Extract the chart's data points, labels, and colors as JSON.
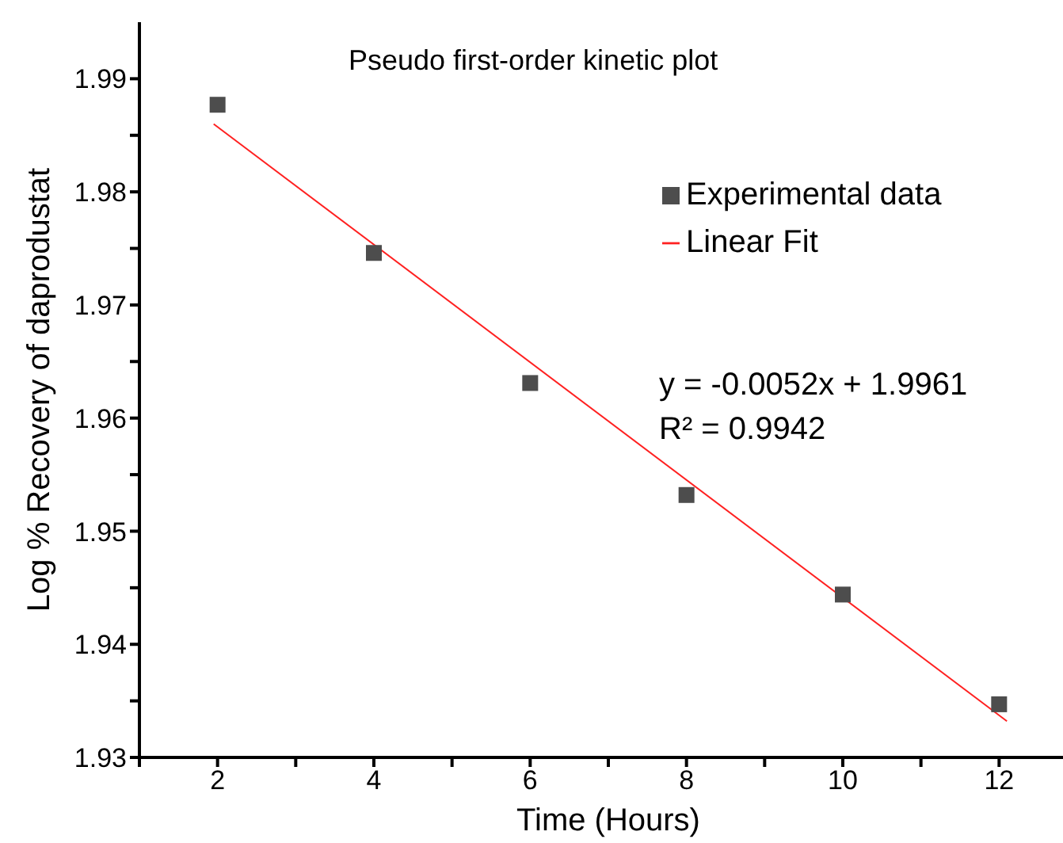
{
  "chart_data": {
    "type": "scatter",
    "title": "Pseudo first-order kinetic plot",
    "xlabel": "Time (Hours)",
    "ylabel": "Log % Recovery of daprodustat",
    "x": [
      2,
      4,
      6,
      8,
      10,
      12
    ],
    "series": [
      {
        "name": "Experimental data",
        "color": "#4d4d4d",
        "marker": "square",
        "values": [
          1.9877,
          1.9746,
          1.9631,
          1.9532,
          1.9444,
          1.9347
        ]
      },
      {
        "name": "Linear Fit",
        "type": "line",
        "color": "#ff2020",
        "line_style": "solid",
        "marker": "none",
        "x": [
          1.95,
          12.1
        ],
        "values": [
          1.986,
          1.9332
        ]
      }
    ],
    "xlim": [
      1,
      13
    ],
    "xticks": [
      {
        "value": 1,
        "label": null
      },
      2,
      {
        "value": 3,
        "label": null
      },
      4,
      {
        "value": 5,
        "label": null
      },
      6,
      {
        "value": 7,
        "label": null
      },
      8,
      {
        "value": 9,
        "label": null
      },
      10,
      {
        "value": 11,
        "label": null
      },
      12,
      {
        "value": 13,
        "label": null
      }
    ],
    "ylim": [
      1.93,
      1.995
    ],
    "yticks": [
      1.93,
      {
        "value": 1.935,
        "label": null
      },
      1.94,
      {
        "value": 1.945,
        "label": null
      },
      1.95,
      {
        "value": 1.955,
        "label": null
      },
      1.96,
      {
        "value": 1.965,
        "label": null
      },
      1.97,
      {
        "value": 1.975,
        "label": null
      },
      1.98,
      {
        "value": 1.985,
        "label": null
      },
      1.99
    ],
    "legend": "top right",
    "grid": false,
    "annotations": [
      "y = -0.0052x + 1.9961",
      "R² = 0.9942"
    ]
  }
}
